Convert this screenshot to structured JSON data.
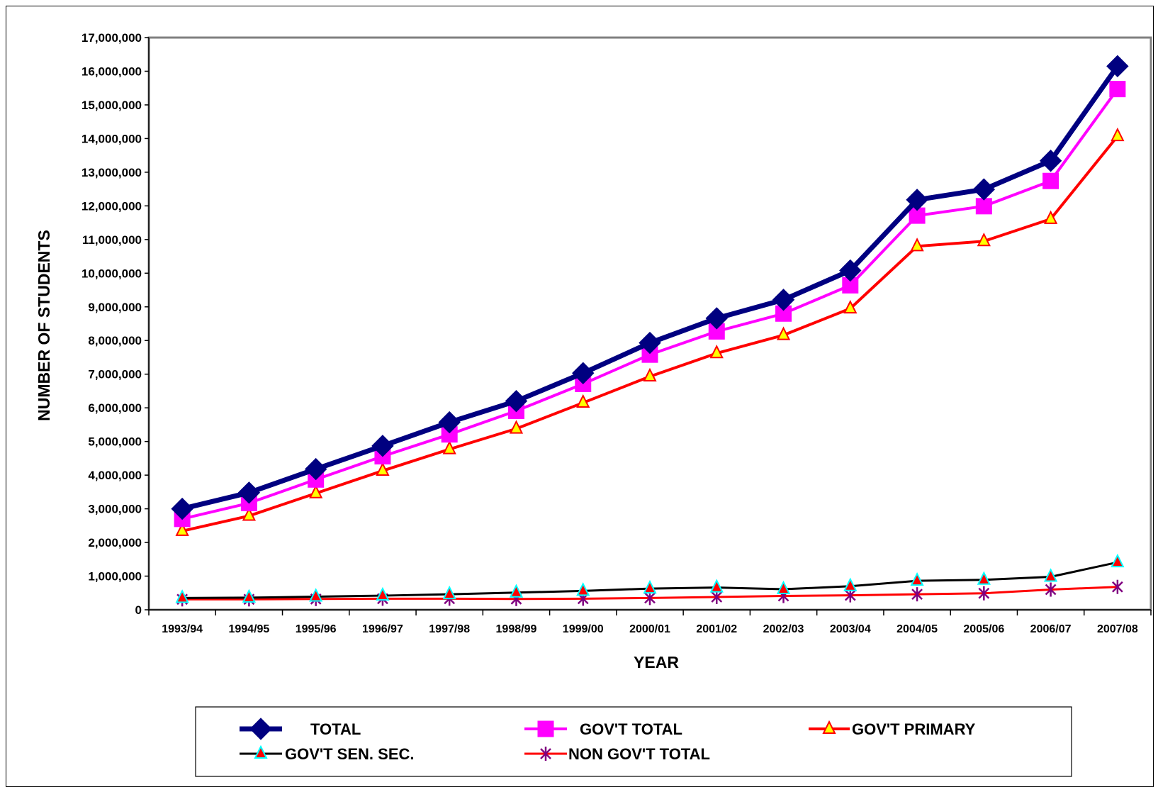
{
  "chart_data": {
    "type": "line",
    "xlabel": "YEAR",
    "ylabel": "NUMBER OF STUDENTS",
    "categories": [
      "1993/94",
      "1994/95",
      "1995/96",
      "1996/97",
      "1997/98",
      "1998/99",
      "1999/00",
      "2000/01",
      "2001/02",
      "2002/03",
      "2003/04",
      "2004/05",
      "2005/06",
      "2006/07",
      "2007/08"
    ],
    "ylim": [
      0,
      17000000
    ],
    "yticks": [
      {
        "value": 0,
        "label": "0"
      },
      {
        "value": 1000000,
        "label": "1,000,000"
      },
      {
        "value": 2000000,
        "label": "2,000,000"
      },
      {
        "value": 3000000,
        "label": "3,000,000"
      },
      {
        "value": 4000000,
        "label": "4,000,000"
      },
      {
        "value": 5000000,
        "label": "5,000,000"
      },
      {
        "value": 6000000,
        "label": "6,000,000"
      },
      {
        "value": 7000000,
        "label": "7,000,000"
      },
      {
        "value": 8000000,
        "label": "8,000,000"
      },
      {
        "value": 9000000,
        "label": "9,000,000"
      },
      {
        "value": 10000000,
        "label": "10,000,000"
      },
      {
        "value": 11000000,
        "label": "11,000,000"
      },
      {
        "value": 12000000,
        "label": "12,000,000"
      },
      {
        "value": 13000000,
        "label": "13,000,000"
      },
      {
        "value": 14000000,
        "label": "14,000,000"
      },
      {
        "value": 15000000,
        "label": "15,000,000"
      },
      {
        "value": 16000000,
        "label": "16,000,000"
      },
      {
        "value": 17000000,
        "label": "17,000,000"
      }
    ],
    "grid": false,
    "legend": "bottom",
    "series": [
      {
        "name": "TOTAL",
        "marker": "diamond",
        "line_color": "#000080",
        "marker_fill": "#000080",
        "marker_stroke": "#000080",
        "values": [
          3000000,
          3480000,
          4180000,
          4870000,
          5570000,
          6200000,
          7030000,
          7930000,
          8660000,
          9210000,
          10080000,
          12180000,
          12490000,
          13340000,
          16150000
        ]
      },
      {
        "name": "GOV'T TOTAL",
        "marker": "square",
        "line_color": "#ff00ff",
        "marker_fill": "#ff00ff",
        "marker_stroke": "#ff00ff",
        "values": [
          2700000,
          3170000,
          3870000,
          4560000,
          5210000,
          5910000,
          6710000,
          7580000,
          8270000,
          8800000,
          9640000,
          11710000,
          11990000,
          12740000,
          15470000
        ]
      },
      {
        "name": "GOV'T PRIMARY",
        "marker": "triangle",
        "line_color": "#ff0000",
        "marker_fill": "#ffff00",
        "marker_stroke": "#ff0000",
        "values": [
          2340000,
          2790000,
          3460000,
          4130000,
          4770000,
          5380000,
          6150000,
          6930000,
          7620000,
          8160000,
          8950000,
          10800000,
          10950000,
          11610000,
          14070000
        ]
      },
      {
        "name": "GOV'T SEN. SEC.",
        "marker": "triangle",
        "line_color": "#000000",
        "marker_fill": "#ff0000",
        "marker_stroke": "#00ffff",
        "values": [
          350000,
          360000,
          390000,
          420000,
          460000,
          510000,
          560000,
          630000,
          660000,
          610000,
          700000,
          860000,
          890000,
          980000,
          1410000
        ]
      },
      {
        "name": "NON GOV'T TOTAL",
        "marker": "asterisk",
        "line_color": "#ff0000",
        "marker_fill": "none",
        "marker_stroke": "#800080",
        "values": [
          310000,
          310000,
          320000,
          330000,
          330000,
          320000,
          330000,
          350000,
          380000,
          410000,
          430000,
          460000,
          490000,
          600000,
          680000
        ]
      }
    ]
  }
}
